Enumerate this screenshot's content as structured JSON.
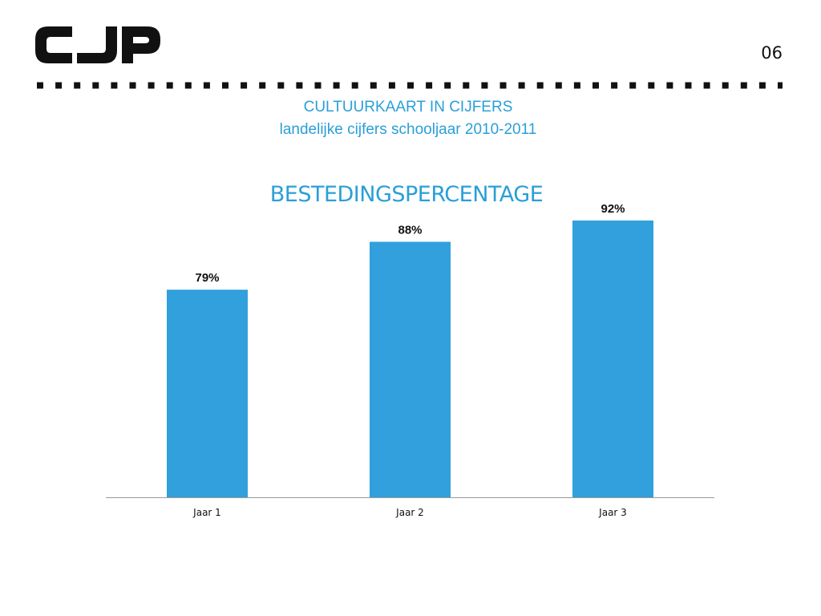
{
  "header": {
    "page_number": "06",
    "line1": "CULTUURKAART IN CIJFERS",
    "line2": "landelijke cijfers schooljaar 2010-2011"
  },
  "logo": {
    "text": "CJP",
    "color": "#111111"
  },
  "colors": {
    "accent": "#2a9fd8",
    "bar": "#31a0dc",
    "axis": "#999999",
    "rule": "#111111"
  },
  "chart_data": {
    "type": "bar",
    "title": "BESTEDINGSPERCENTAGE",
    "categories": [
      "Jaar 1",
      "Jaar 2",
      "Jaar 3"
    ],
    "values": [
      79,
      88,
      92
    ],
    "labels": [
      "79%",
      "88%",
      "92%"
    ],
    "ylim": [
      40,
      95
    ],
    "xlabel": "",
    "ylabel": "",
    "grid": false,
    "legend": "none"
  }
}
